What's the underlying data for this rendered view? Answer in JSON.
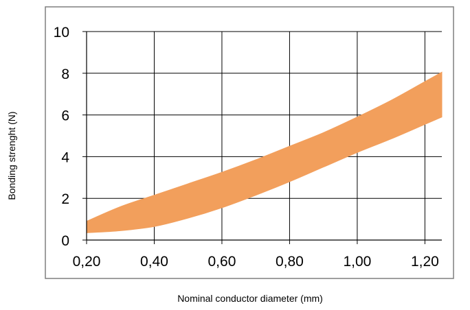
{
  "chart_data": {
    "type": "area",
    "title": "",
    "xlabel": "Nominal conductor diameter (mm)",
    "ylabel": "Bonding strenght (N)",
    "xlim": [
      0.2,
      1.25
    ],
    "ylim": [
      0,
      10
    ],
    "x_ticks": [
      {
        "value": 0.2,
        "label": "0,20"
      },
      {
        "value": 0.4,
        "label": "0,40"
      },
      {
        "value": 0.6,
        "label": "0,60"
      },
      {
        "value": 0.8,
        "label": "0,80"
      },
      {
        "value": 1.0,
        "label": "1,00"
      },
      {
        "value": 1.2,
        "label": "1,20"
      }
    ],
    "y_ticks": [
      {
        "value": 0,
        "label": "0"
      },
      {
        "value": 2,
        "label": "2"
      },
      {
        "value": 4,
        "label": "4"
      },
      {
        "value": 6,
        "label": "6"
      },
      {
        "value": 8,
        "label": "8"
      },
      {
        "value": 10,
        "label": "10"
      }
    ],
    "grid": true,
    "band": {
      "color": "#f29f5c",
      "upper": [
        {
          "x": 0.2,
          "y": 0.9
        },
        {
          "x": 0.3,
          "y": 1.6
        },
        {
          "x": 0.4,
          "y": 2.15
        },
        {
          "x": 0.5,
          "y": 2.7
        },
        {
          "x": 0.6,
          "y": 3.25
        },
        {
          "x": 0.7,
          "y": 3.85
        },
        {
          "x": 0.8,
          "y": 4.5
        },
        {
          "x": 0.9,
          "y": 5.15
        },
        {
          "x": 1.0,
          "y": 5.9
        },
        {
          "x": 1.1,
          "y": 6.7
        },
        {
          "x": 1.2,
          "y": 7.6
        },
        {
          "x": 1.25,
          "y": 8.05
        }
      ],
      "lower": [
        {
          "x": 0.2,
          "y": 0.35
        },
        {
          "x": 0.3,
          "y": 0.45
        },
        {
          "x": 0.4,
          "y": 0.65
        },
        {
          "x": 0.5,
          "y": 1.05
        },
        {
          "x": 0.6,
          "y": 1.55
        },
        {
          "x": 0.7,
          "y": 2.15
        },
        {
          "x": 0.8,
          "y": 2.8
        },
        {
          "x": 0.9,
          "y": 3.5
        },
        {
          "x": 1.0,
          "y": 4.2
        },
        {
          "x": 1.1,
          "y": 4.85
        },
        {
          "x": 1.2,
          "y": 5.55
        },
        {
          "x": 1.25,
          "y": 5.9
        }
      ]
    }
  }
}
